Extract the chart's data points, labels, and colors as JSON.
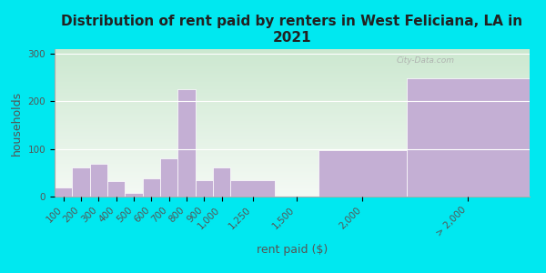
{
  "title": "Distribution of rent paid by renters in West Feliciana, LA in\n2021",
  "xlabel": "rent paid ($)",
  "ylabel": "households",
  "bar_color": "#c4afd4",
  "background_top": "#cce8d0",
  "background_bottom": "#f5faf5",
  "outer_bg": "#00e8f0",
  "ylim": [
    0,
    310
  ],
  "yticks": [
    0,
    100,
    200,
    300
  ],
  "categories": [
    "100",
    "200",
    "300",
    "400",
    "500",
    "600",
    "700",
    "800",
    "900",
    "1,000",
    "1,250",
    "1,500",
    "2,000",
    "> 2,000"
  ],
  "values": [
    20,
    62,
    68,
    32,
    8,
    38,
    80,
    225,
    35,
    62,
    35,
    0,
    97,
    248
  ],
  "watermark": "City-Data.com",
  "title_fontsize": 11,
  "axis_label_fontsize": 9,
  "tick_fontsize": 7.5
}
